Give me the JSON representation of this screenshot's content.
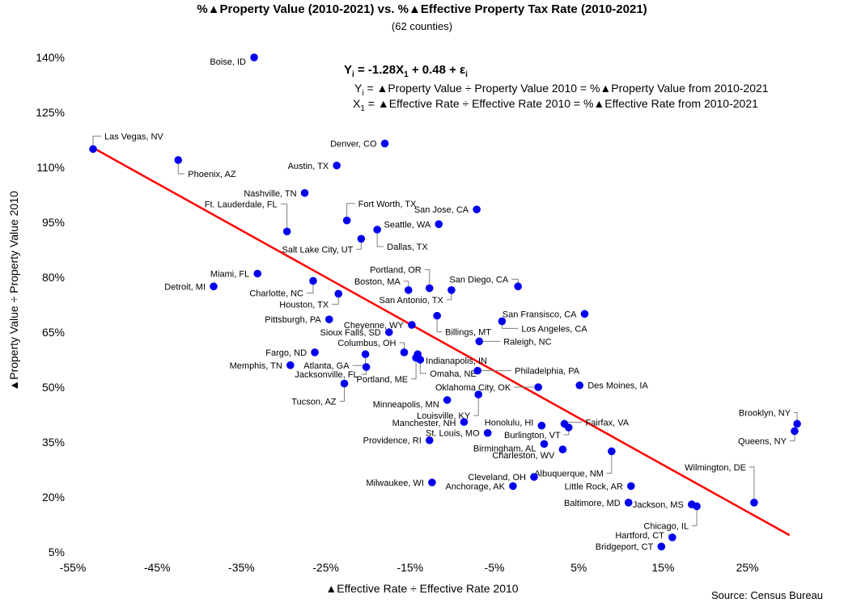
{
  "chart_data": {
    "type": "scatter",
    "title": "%▲Property Value (2010-2021) vs. %▲Effective Property Tax Rate (2010-2021)",
    "subtitle": "(62 counties)",
    "xlabel": "▲Effective Rate ÷ Effective Rate 2010",
    "ylabel": "▲Property Value ÷ Property Value 2010",
    "source": "Source: Census Bureau",
    "x_ticks": [
      "-55%",
      "-45%",
      "-35%",
      "-25%",
      "-15%",
      "-5%",
      "5%",
      "15%",
      "25%"
    ],
    "y_ticks": [
      "5%",
      "20%",
      "35%",
      "50%",
      "65%",
      "80%",
      "95%",
      "110%",
      "125%",
      "140%"
    ],
    "xlim": [
      -55,
      30
    ],
    "ylim": [
      4,
      145
    ],
    "grid": false,
    "equation": {
      "main": "Yi = -1.28X1 + 0.48 + εi",
      "line1": "Yi = ▲Property Value ÷ Property Value 2010 = %▲Property Value from 2010-2021",
      "line2": "X1 = ▲Effective Rate ÷ Effective Rate 2010 =  %▲Effective Rate from 2010-2021"
    },
    "trendline": {
      "slope": -1.28,
      "intercept": 48,
      "x_range": [
        -52.6,
        30
      ],
      "color": "#ff0000"
    },
    "point_color": "#0000ee",
    "points": [
      {
        "label": "Boise, ID",
        "x": -33.5,
        "y": 140
      },
      {
        "label": "Las Vegas, NV",
        "x": -52.6,
        "y": 115
      },
      {
        "label": "Phoenix, AZ",
        "x": -42.5,
        "y": 112
      },
      {
        "label": "Denver, CO",
        "x": -18,
        "y": 116.5
      },
      {
        "label": "Austin, TX",
        "x": -23.7,
        "y": 110.5
      },
      {
        "label": "Nashville, TN",
        "x": -27.5,
        "y": 103
      },
      {
        "label": "Ft. Lauderdale, FL",
        "x": -29.6,
        "y": 92.5
      },
      {
        "label": "Fort Worth, TX",
        "x": -22.5,
        "y": 95.5
      },
      {
        "label": "Seattle, WA",
        "x": -11.6,
        "y": 94.5
      },
      {
        "label": "San Jose, CA",
        "x": -7.1,
        "y": 98.5
      },
      {
        "label": "Dallas, TX",
        "x": -18.9,
        "y": 93
      },
      {
        "label": "Salt Lake City, UT",
        "x": -20.8,
        "y": 90.5
      },
      {
        "label": "Miami, FL",
        "x": -33.1,
        "y": 81
      },
      {
        "label": "Detroit, MI",
        "x": -38.3,
        "y": 77.5
      },
      {
        "label": "Charlotte, NC",
        "x": -26.5,
        "y": 79
      },
      {
        "label": "Houston, TX",
        "x": -23.5,
        "y": 75.5
      },
      {
        "label": "Portland, OR",
        "x": -12.7,
        "y": 77
      },
      {
        "label": "Boston, MA",
        "x": -15.2,
        "y": 76.5
      },
      {
        "label": "San Diego, CA",
        "x": -2.2,
        "y": 77.5
      },
      {
        "label": "San Antonio, TX",
        "x": -10.1,
        "y": 76.5
      },
      {
        "label": "Pittsburgh, PA",
        "x": -24.6,
        "y": 68.5
      },
      {
        "label": "Cheyenne, WY",
        "x": -14.8,
        "y": 67
      },
      {
        "label": "Billings, MT",
        "x": -11.8,
        "y": 69.5
      },
      {
        "label": "San Fransisco, CA",
        "x": 5.7,
        "y": 70
      },
      {
        "label": "Los Angeles, CA",
        "x": -4.1,
        "y": 68
      },
      {
        "label": "Sioux Falls, SD",
        "x": -17.5,
        "y": 65
      },
      {
        "label": "Raleigh, NC",
        "x": -6.8,
        "y": 62.5
      },
      {
        "label": "Fargo, ND",
        "x": -26.3,
        "y": 59.5
      },
      {
        "label": "Columbus, OH",
        "x": -15.7,
        "y": 59.5
      },
      {
        "label": "Indianapolis, IN",
        "x": -14.1,
        "y": 59
      },
      {
        "label": "Atlanta, GA",
        "x": -20.3,
        "y": 59
      },
      {
        "label": "Memphis, TN",
        "x": -29.2,
        "y": 56
      },
      {
        "label": "Jacksonville, FL",
        "x": -20.2,
        "y": 55.5
      },
      {
        "label": "Omaha, NE",
        "x": -13.8,
        "y": 57.5
      },
      {
        "label": "Philadelphia, PA",
        "x": -7.0,
        "y": 54.5
      },
      {
        "label": "Portland, ME",
        "x": -14.3,
        "y": 58
      },
      {
        "label": "Oklahoma City, OK",
        "x": 0.2,
        "y": 50
      },
      {
        "label": "Des Moines, IA",
        "x": 5.1,
        "y": 50.5
      },
      {
        "label": "Tucson, AZ",
        "x": -22.8,
        "y": 51
      },
      {
        "label": "Minneapolis, MN",
        "x": -10.6,
        "y": 46.5
      },
      {
        "label": "Louisville, KY",
        "x": -6.9,
        "y": 48
      },
      {
        "label": "Manchester, NH",
        "x": -8.6,
        "y": 40.5
      },
      {
        "label": "St. Louis, MO",
        "x": -5.8,
        "y": 37.5
      },
      {
        "label": "Providence, RI",
        "x": -12.7,
        "y": 35.5
      },
      {
        "label": "Honolulu, HI",
        "x": 0.6,
        "y": 39.5
      },
      {
        "label": "Fairfax, VA",
        "x": 3.3,
        "y": 40
      },
      {
        "label": "Burlington, VT",
        "x": 3.8,
        "y": 39
      },
      {
        "label": "Birmingham, AL",
        "x": 0.9,
        "y": 34.5
      },
      {
        "label": "Charleston, WV",
        "x": 3.1,
        "y": 33
      },
      {
        "label": "Albuquerque, NM",
        "x": 8.9,
        "y": 32.5
      },
      {
        "label": "Brooklyn, NY",
        "x": 30.9,
        "y": 40
      },
      {
        "label": "Queens, NY",
        "x": 30.6,
        "y": 38
      },
      {
        "label": "Cleveland, OH",
        "x": -0.3,
        "y": 25.5
      },
      {
        "label": "Milwaukee, WI",
        "x": -12.4,
        "y": 24
      },
      {
        "label": "Anchorage, AK",
        "x": -2.8,
        "y": 23
      },
      {
        "label": "Little Rock, AR",
        "x": 11.2,
        "y": 23
      },
      {
        "label": "Wilmington, DE",
        "x": 25.8,
        "y": 18.5
      },
      {
        "label": "Baltimore, MD",
        "x": 10.9,
        "y": 18.5
      },
      {
        "label": "Jackson, MS",
        "x": 18.4,
        "y": 18
      },
      {
        "label": "Chicago, IL",
        "x": 19.0,
        "y": 17.5
      },
      {
        "label": "Hartford, CT",
        "x": 16.1,
        "y": 9
      },
      {
        "label": "Bridgeport, CT",
        "x": 14.8,
        "y": 6.5
      }
    ]
  }
}
